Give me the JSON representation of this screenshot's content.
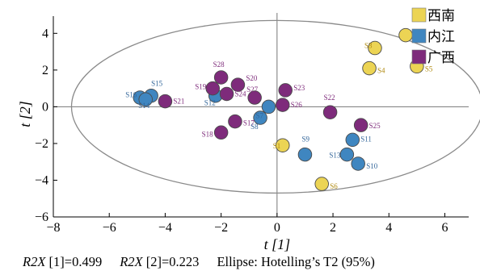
{
  "chart_data": {
    "type": "scatter",
    "xlabel": "t [1]",
    "ylabel": "t [2]",
    "xlim": [
      -8,
      7.2
    ],
    "ylim": [
      -6,
      5.2
    ],
    "xticks": [
      -8,
      -6,
      -4,
      -2,
      0,
      2,
      4,
      6
    ],
    "yticks": [
      -6,
      -4,
      -2,
      0,
      2,
      4
    ],
    "ellipse": {
      "label": "Hotelling's T2 (95%)",
      "center": [
        0,
        0
      ],
      "rx": 7.35,
      "ry": 4.7
    },
    "legend": {
      "position": "top-right"
    },
    "series": [
      {
        "name": "西南",
        "color": "#ecd454",
        "label_color": "#b08a10",
        "points": [
          {
            "label": "S1",
            "x": 0.2,
            "y": -2.1
          },
          {
            "label": "S2",
            "x": 4.6,
            "y": 3.9
          },
          {
            "label": "S3",
            "x": 3.5,
            "y": 3.2
          },
          {
            "label": "S4",
            "x": 3.3,
            "y": 2.1
          },
          {
            "label": "S5",
            "x": 5.0,
            "y": 2.2
          },
          {
            "label": "S6",
            "x": 1.6,
            "y": -4.2
          }
        ]
      },
      {
        "name": "内江",
        "color": "#3f86c0",
        "label_color": "#33669a",
        "points": [
          {
            "label": "S7",
            "x": -0.3,
            "y": 0.0
          },
          {
            "label": "S8",
            "x": -0.6,
            "y": -0.6
          },
          {
            "label": "S9",
            "x": 1.0,
            "y": -2.6
          },
          {
            "label": "S10",
            "x": 2.9,
            "y": -3.1
          },
          {
            "label": "S11",
            "x": 2.7,
            "y": -1.8
          },
          {
            "label": "S12",
            "x": -2.2,
            "y": 0.6
          },
          {
            "label": "S13",
            "x": 2.5,
            "y": -2.6
          },
          {
            "label": "S14",
            "x": -4.9,
            "y": 0.5
          },
          {
            "label": "S15",
            "x": -4.5,
            "y": 0.6
          },
          {
            "label": "S16",
            "x": -4.7,
            "y": 0.4
          }
        ]
      },
      {
        "name": "广西",
        "color": "#7e2b7b",
        "label_color": "#7e2b7b",
        "points": [
          {
            "label": "S17",
            "x": -1.5,
            "y": -0.8
          },
          {
            "label": "S18",
            "x": -2.0,
            "y": -1.4
          },
          {
            "label": "S19",
            "x": -2.3,
            "y": 1.0
          },
          {
            "label": "S20",
            "x": -1.4,
            "y": 1.2
          },
          {
            "label": "S21",
            "x": -4.0,
            "y": 0.3
          },
          {
            "label": "S22",
            "x": 1.9,
            "y": -0.3
          },
          {
            "label": "S23",
            "x": 0.3,
            "y": 0.9
          },
          {
            "label": "S24",
            "x": -1.8,
            "y": 0.7
          },
          {
            "label": "S25",
            "x": 3.0,
            "y": -1.0
          },
          {
            "label": "S26",
            "x": 0.2,
            "y": 0.1
          },
          {
            "label": "S27",
            "x": -0.8,
            "y": 0.5
          },
          {
            "label": "S28",
            "x": -2.0,
            "y": 1.6
          }
        ]
      }
    ]
  },
  "caption": {
    "r2x1_name": "R2X",
    "r2x1_rest": " [1]=0.499",
    "r2x2_name": "R2X",
    "r2x2_rest": " [2]=0.223",
    "ellipse_text": "Ellipse: Hotelling’s T2 (95%)"
  }
}
